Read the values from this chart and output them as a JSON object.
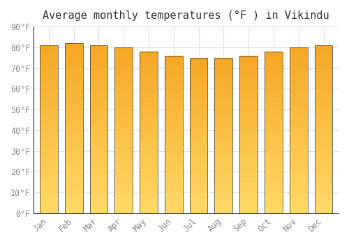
{
  "title": "Average monthly temperatures (°F ) in Vikindu",
  "categories": [
    "Jan",
    "Feb",
    "Mar",
    "Apr",
    "May",
    "Jun",
    "Jul",
    "Aug",
    "Sep",
    "Oct",
    "Nov",
    "Dec"
  ],
  "values": [
    81,
    82,
    81,
    80,
    78,
    76,
    75,
    75,
    76,
    78,
    80,
    81
  ],
  "bar_color_dark": "#F5A623",
  "bar_color_light": "#FFD966",
  "bar_outline_color": "#333333",
  "background_color": "#FFFFFF",
  "grid_color": "#DDDDDD",
  "ylim": [
    0,
    90
  ],
  "yticks": [
    0,
    10,
    20,
    30,
    40,
    50,
    60,
    70,
    80,
    90
  ],
  "ytick_labels": [
    "0°F",
    "10°F",
    "20°F",
    "30°F",
    "40°F",
    "50°F",
    "60°F",
    "70°F",
    "80°F",
    "90°F"
  ],
  "title_fontsize": 11,
  "tick_fontsize": 8.5,
  "bar_width": 0.72
}
